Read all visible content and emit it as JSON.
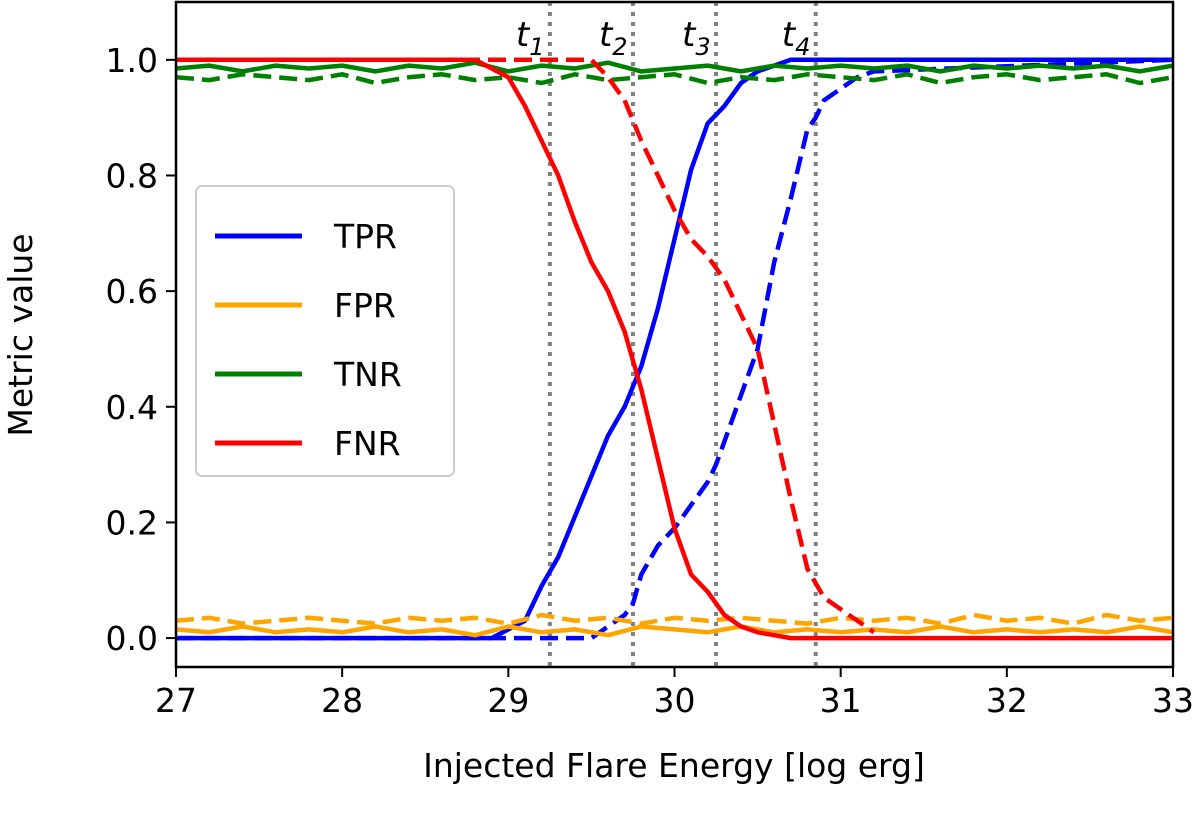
{
  "chart_data": {
    "type": "line",
    "xlabel": "Injected Flare Energy [log erg]",
    "ylabel": "Metric value",
    "xlim": [
      27,
      33
    ],
    "ylim": [
      -0.05,
      1.1
    ],
    "xticks": [
      27,
      28,
      29,
      30,
      31,
      32,
      33
    ],
    "xtick_labels": [
      "27",
      "28",
      "29",
      "30",
      "31",
      "32",
      "33"
    ],
    "yticks": [
      0.0,
      0.2,
      0.4,
      0.6,
      0.8,
      1.0
    ],
    "ytick_labels": [
      "0.0",
      "0.2",
      "0.4",
      "0.6",
      "0.8",
      "1.0"
    ],
    "legend_position": "center-left",
    "legend": [
      {
        "label": "TPR",
        "color": "#0000ff"
      },
      {
        "label": "FPR",
        "color": "#ffa500"
      },
      {
        "label": "TNR",
        "color": "#008000"
      },
      {
        "label": "FNR",
        "color": "#ff0000"
      }
    ],
    "thresholds": [
      {
        "x": 29.25,
        "label": "t",
        "sub": "1"
      },
      {
        "x": 29.75,
        "label": "t",
        "sub": "2"
      },
      {
        "x": 30.25,
        "label": "t",
        "sub": "3"
      },
      {
        "x": 30.85,
        "label": "t",
        "sub": "4"
      }
    ],
    "series": [
      {
        "name": "TPR",
        "style": "solid",
        "color": "#0000ff",
        "x": [
          27,
          28.9,
          29.1,
          29.2,
          29.3,
          29.4,
          29.5,
          29.6,
          29.7,
          29.8,
          29.9,
          30.0,
          30.1,
          30.2,
          30.3,
          30.4,
          30.5,
          30.6,
          30.7,
          33
        ],
        "y": [
          0,
          0,
          0.03,
          0.09,
          0.14,
          0.21,
          0.28,
          0.35,
          0.4,
          0.47,
          0.57,
          0.69,
          0.81,
          0.89,
          0.92,
          0.96,
          0.98,
          0.99,
          1.0,
          1.0
        ]
      },
      {
        "name": "TPR",
        "style": "dashed",
        "color": "#0000ff",
        "x": [
          27,
          29.5,
          29.6,
          29.7,
          29.75,
          29.8,
          29.9,
          30.0,
          30.1,
          30.2,
          30.25,
          30.3,
          30.4,
          30.5,
          30.6,
          30.7,
          30.8,
          30.85,
          30.9,
          31.0,
          31.1,
          31.2,
          33
        ],
        "y": [
          0,
          0,
          0.02,
          0.04,
          0.06,
          0.11,
          0.16,
          0.19,
          0.23,
          0.27,
          0.3,
          0.34,
          0.42,
          0.5,
          0.65,
          0.76,
          0.88,
          0.9,
          0.93,
          0.95,
          0.97,
          0.98,
          1.0
        ]
      },
      {
        "name": "FPR",
        "style": "solid",
        "color": "#ffa500",
        "x": [
          27,
          27.2,
          27.4,
          27.6,
          27.8,
          28.0,
          28.2,
          28.4,
          28.6,
          28.8,
          29.0,
          29.2,
          29.4,
          29.6,
          29.8,
          30.0,
          30.2,
          30.4,
          30.6,
          30.8,
          31.0,
          31.2,
          31.4,
          31.6,
          31.8,
          32.0,
          32.2,
          32.4,
          32.6,
          32.8,
          33.0
        ],
        "y": [
          0.015,
          0.01,
          0.02,
          0.01,
          0.015,
          0.01,
          0.02,
          0.01,
          0.015,
          0.005,
          0.02,
          0.01,
          0.015,
          0.005,
          0.02,
          0.015,
          0.01,
          0.02,
          0.01,
          0.015,
          0.01,
          0.015,
          0.01,
          0.02,
          0.01,
          0.015,
          0.01,
          0.015,
          0.01,
          0.02,
          0.01
        ]
      },
      {
        "name": "FPR",
        "style": "dashed",
        "color": "#ffa500",
        "x": [
          27,
          27.2,
          27.4,
          27.6,
          27.8,
          28.0,
          28.2,
          28.4,
          28.6,
          28.8,
          29.0,
          29.2,
          29.4,
          29.6,
          29.8,
          30.0,
          30.2,
          30.4,
          30.6,
          30.8,
          31.0,
          31.2,
          31.4,
          31.6,
          31.8,
          32.0,
          32.2,
          32.4,
          32.6,
          32.8,
          33.0
        ],
        "y": [
          0.03,
          0.035,
          0.025,
          0.03,
          0.035,
          0.03,
          0.025,
          0.035,
          0.03,
          0.035,
          0.025,
          0.04,
          0.03,
          0.035,
          0.025,
          0.035,
          0.03,
          0.035,
          0.03,
          0.025,
          0.035,
          0.03,
          0.035,
          0.025,
          0.04,
          0.03,
          0.035,
          0.025,
          0.04,
          0.03,
          0.035
        ]
      },
      {
        "name": "TNR",
        "style": "solid",
        "color": "#008000",
        "x": [
          27,
          27.2,
          27.4,
          27.6,
          27.8,
          28.0,
          28.2,
          28.4,
          28.6,
          28.8,
          29.0,
          29.2,
          29.4,
          29.6,
          29.8,
          30.0,
          30.2,
          30.4,
          30.6,
          30.8,
          31.0,
          31.2,
          31.4,
          31.6,
          31.8,
          32.0,
          32.2,
          32.4,
          32.6,
          32.8,
          33.0
        ],
        "y": [
          0.985,
          0.99,
          0.98,
          0.99,
          0.985,
          0.99,
          0.98,
          0.99,
          0.985,
          0.995,
          0.98,
          0.99,
          0.985,
          0.995,
          0.98,
          0.985,
          0.99,
          0.98,
          0.99,
          0.985,
          0.99,
          0.985,
          0.99,
          0.98,
          0.99,
          0.985,
          0.99,
          0.985,
          0.99,
          0.98,
          0.99
        ]
      },
      {
        "name": "TNR",
        "style": "dashed",
        "color": "#008000",
        "x": [
          27,
          27.2,
          27.4,
          27.6,
          27.8,
          28.0,
          28.2,
          28.4,
          28.6,
          28.8,
          29.0,
          29.2,
          29.4,
          29.6,
          29.8,
          30.0,
          30.2,
          30.4,
          30.6,
          30.8,
          31.0,
          31.2,
          31.4,
          31.6,
          31.8,
          32.0,
          32.2,
          32.4,
          32.6,
          32.8,
          33.0
        ],
        "y": [
          0.97,
          0.965,
          0.975,
          0.97,
          0.965,
          0.975,
          0.96,
          0.97,
          0.975,
          0.965,
          0.97,
          0.96,
          0.975,
          0.965,
          0.97,
          0.975,
          0.96,
          0.97,
          0.965,
          0.975,
          0.97,
          0.965,
          0.975,
          0.96,
          0.97,
          0.975,
          0.965,
          0.97,
          0.975,
          0.96,
          0.97
        ]
      },
      {
        "name": "FNR",
        "style": "solid",
        "color": "#ff0000",
        "x": [
          27,
          28.8,
          29.0,
          29.1,
          29.2,
          29.3,
          29.4,
          29.5,
          29.6,
          29.7,
          29.8,
          29.9,
          30.0,
          30.1,
          30.2,
          30.3,
          30.4,
          30.5,
          30.6,
          30.7,
          33
        ],
        "y": [
          1.0,
          1.0,
          0.97,
          0.92,
          0.86,
          0.8,
          0.72,
          0.65,
          0.6,
          0.53,
          0.43,
          0.31,
          0.19,
          0.11,
          0.08,
          0.04,
          0.02,
          0.01,
          0.005,
          0.0,
          0.0
        ]
      },
      {
        "name": "FNR",
        "style": "dashed",
        "color": "#ff0000",
        "x": [
          27,
          29.5,
          29.6,
          29.7,
          29.8,
          29.9,
          30.0,
          30.1,
          30.2,
          30.3,
          30.4,
          30.5,
          30.6,
          30.7,
          30.8,
          30.9,
          31.0,
          31.1,
          31.2
        ],
        "y": [
          1.0,
          1.0,
          0.97,
          0.93,
          0.86,
          0.8,
          0.74,
          0.69,
          0.66,
          0.62,
          0.56,
          0.5,
          0.37,
          0.24,
          0.12,
          0.07,
          0.05,
          0.03,
          0.01
        ]
      }
    ]
  }
}
